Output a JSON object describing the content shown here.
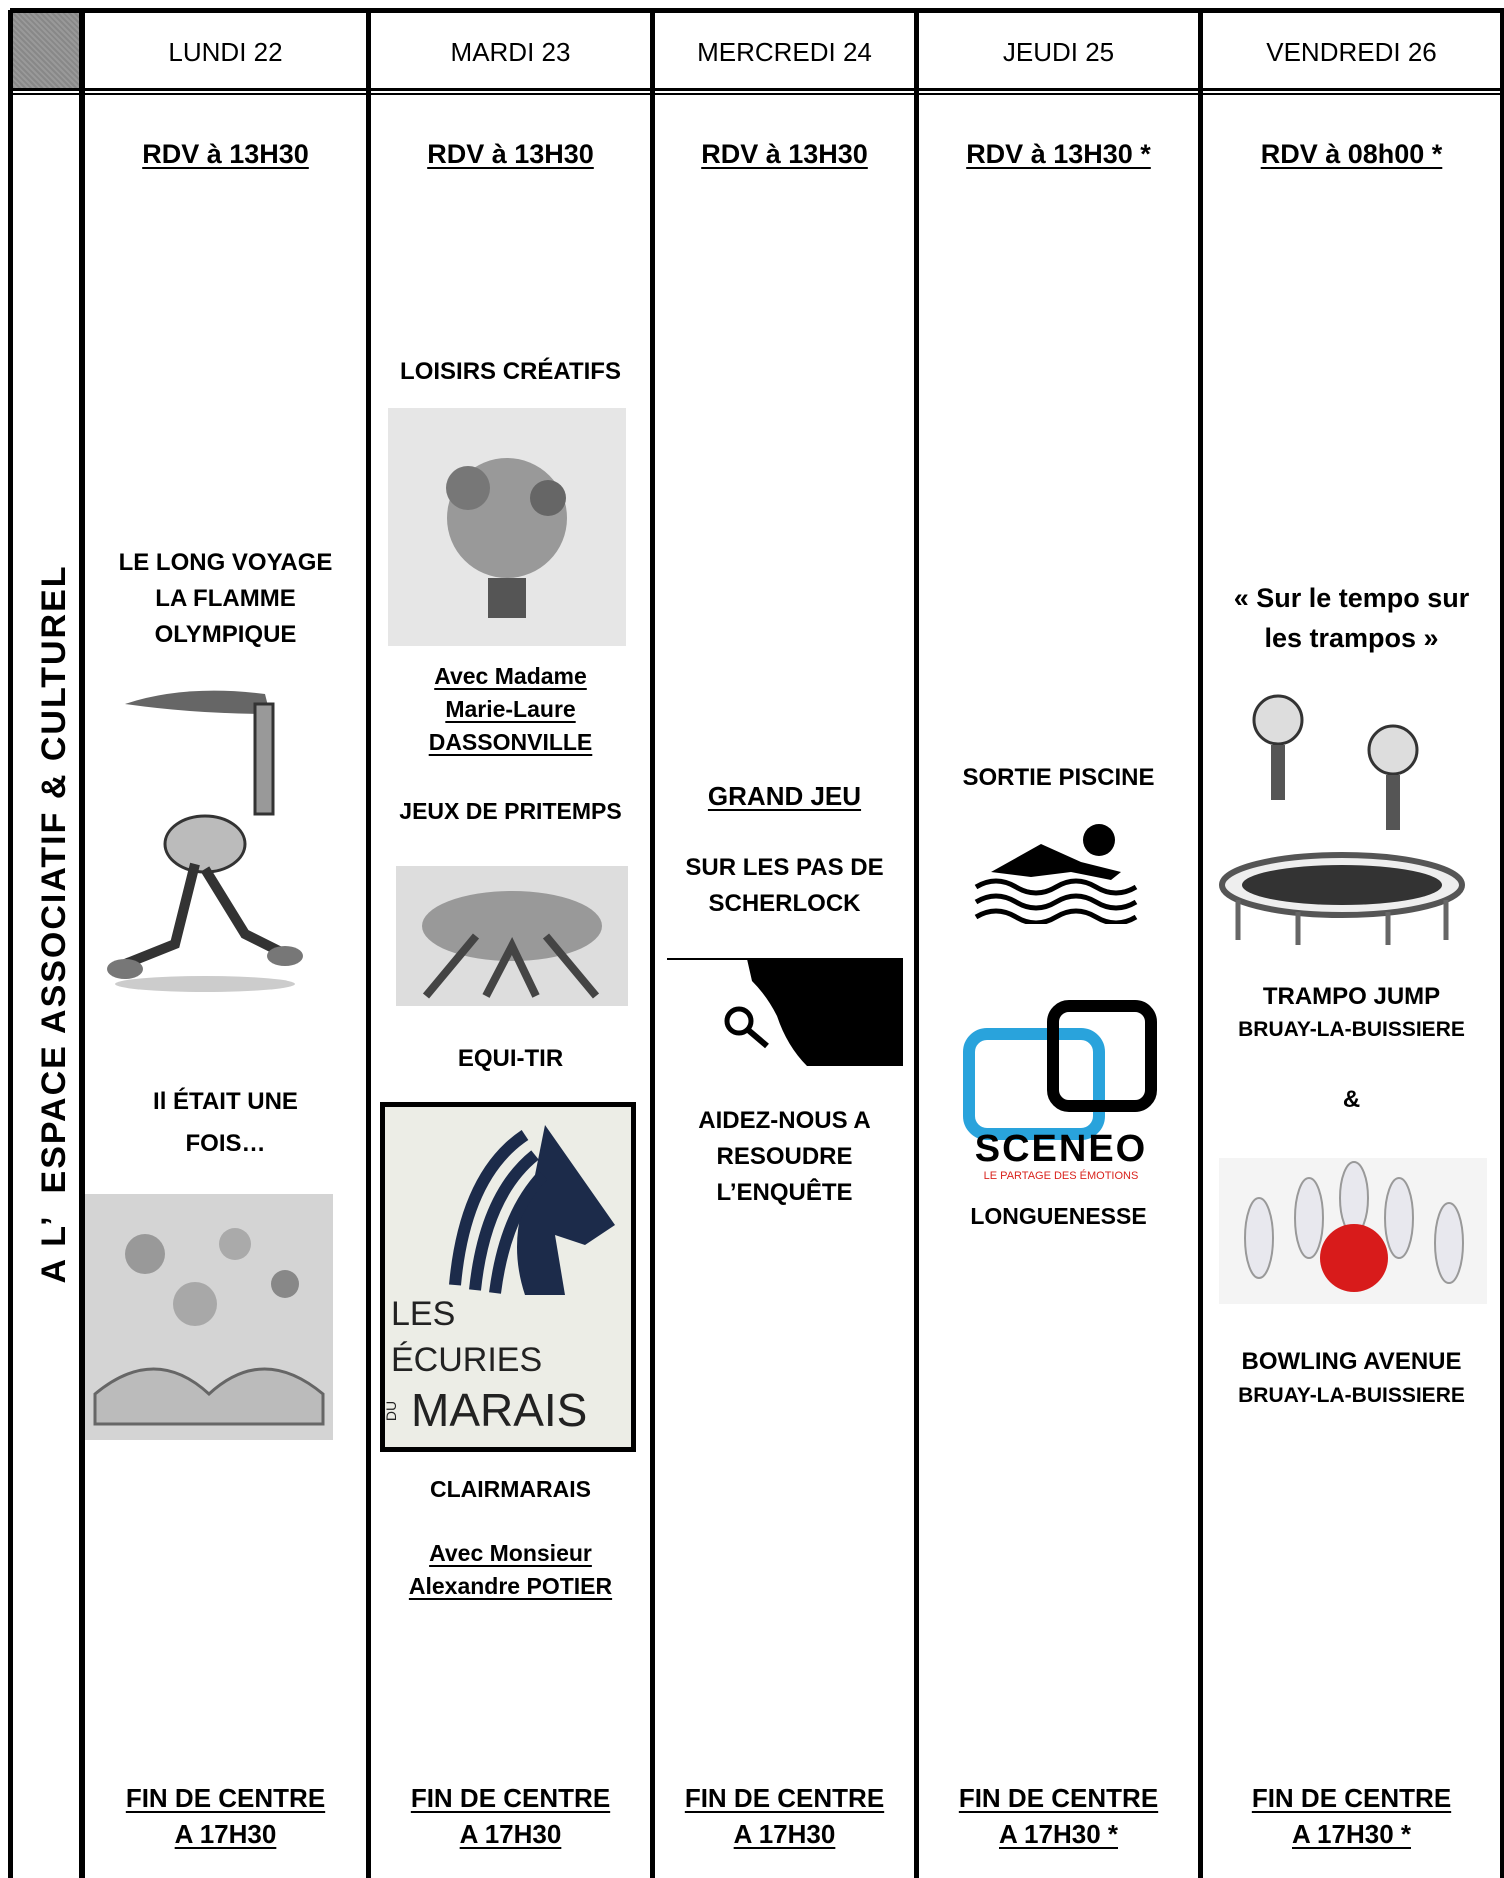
{
  "header": {
    "days": [
      "LUNDI 22",
      "MARDI 23",
      "MERCREDI 24",
      "JEUDI 25",
      "VENDREDI 26"
    ]
  },
  "side_label": "A L’  ESPACE ASSOCIATIF & CULTUREL",
  "columns": [
    {
      "texts": [
        "RDV à 13H30",
        "LE LONG VOYAGE\nLA FLAMME\nOLYMPIQUE",
        "Il ÉTAIT UNE\nFOIS…",
        "FIN DE CENTRE\nA 17H30"
      ]
    },
    {
      "texts": [
        "RDV à 13H30",
        "LOISIRS CRÉATIFS",
        "Avec Madame\nMarie-Laure\nDASSONVILLE",
        "JEUX DE PRITEMPS",
        "EQUI-TIR",
        "LES",
        "ÉCURIES",
        "DU",
        "MARAIS",
        "CLAIRMARAIS",
        "Avec Monsieur\nAlexandre POTIER",
        "FIN DE CENTRE\nA 17H30"
      ]
    },
    {
      "texts": [
        "RDV à 13H30",
        "GRAND JEU",
        "SUR LES PAS DE\nSCHERLOCK",
        "AIDEZ-NOUS A\nRESOUDRE\nL’ENQUÊTE",
        "FIN DE CENTRE\nA 17H30"
      ]
    },
    {
      "texts": [
        "RDV à 13H30 *",
        "SORTIE PISCINE",
        "SCENEO",
        "LE PARTAGE DES ÉMOTIONS",
        "LONGUENESSE",
        "FIN DE CENTRE\nA 17H30 *"
      ]
    },
    {
      "texts": [
        "RDV à 08h00 *",
        "« Sur le tempo sur\nles trampos »",
        "TRAMPO JUMP",
        "BRUAY-LA-BUISSIERE",
        "&",
        "BOWLING AVENUE",
        "BRUAY-LA-BUISSIERE",
        "FIN DE CENTRE\nA 17H30 *"
      ]
    }
  ]
}
